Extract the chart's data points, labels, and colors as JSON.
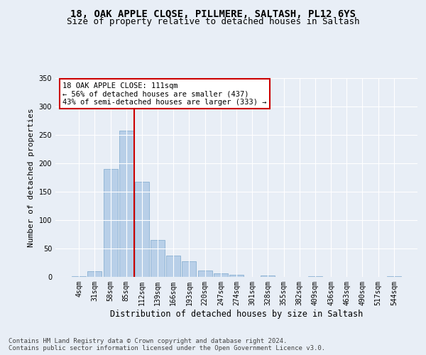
{
  "title1": "18, OAK APPLE CLOSE, PILLMERE, SALTASH, PL12 6YS",
  "title2": "Size of property relative to detached houses in Saltash",
  "xlabel": "Distribution of detached houses by size in Saltash",
  "ylabel": "Number of detached properties",
  "categories": [
    "4sqm",
    "31sqm",
    "58sqm",
    "85sqm",
    "112sqm",
    "139sqm",
    "166sqm",
    "193sqm",
    "220sqm",
    "247sqm",
    "274sqm",
    "301sqm",
    "328sqm",
    "355sqm",
    "382sqm",
    "409sqm",
    "436sqm",
    "463sqm",
    "490sqm",
    "517sqm",
    "544sqm"
  ],
  "values": [
    1,
    10,
    190,
    258,
    168,
    65,
    37,
    28,
    11,
    6,
    4,
    0,
    3,
    0,
    0,
    1,
    0,
    0,
    0,
    0,
    1
  ],
  "bar_color": "#b8cfe8",
  "bar_edge_color": "#7ba7cc",
  "highlight_index": 4,
  "highlight_line_color": "#cc0000",
  "annotation_line1": "18 OAK APPLE CLOSE: 111sqm",
  "annotation_line2": "← 56% of detached houses are smaller (437)",
  "annotation_line3": "43% of semi-detached houses are larger (333) →",
  "annotation_box_color": "#ffffff",
  "annotation_box_edge_color": "#cc0000",
  "footer_text": "Contains HM Land Registry data © Crown copyright and database right 2024.\nContains public sector information licensed under the Open Government Licence v3.0.",
  "ylim": [
    0,
    350
  ],
  "yticks": [
    0,
    50,
    100,
    150,
    200,
    250,
    300,
    350
  ],
  "background_color": "#e8eef6",
  "plot_bg_color": "#e8eef6",
  "grid_color": "#ffffff",
  "title1_fontsize": 10,
  "title2_fontsize": 9,
  "xlabel_fontsize": 8.5,
  "ylabel_fontsize": 8,
  "tick_fontsize": 7,
  "annotation_fontsize": 7.5,
  "footer_fontsize": 6.5
}
